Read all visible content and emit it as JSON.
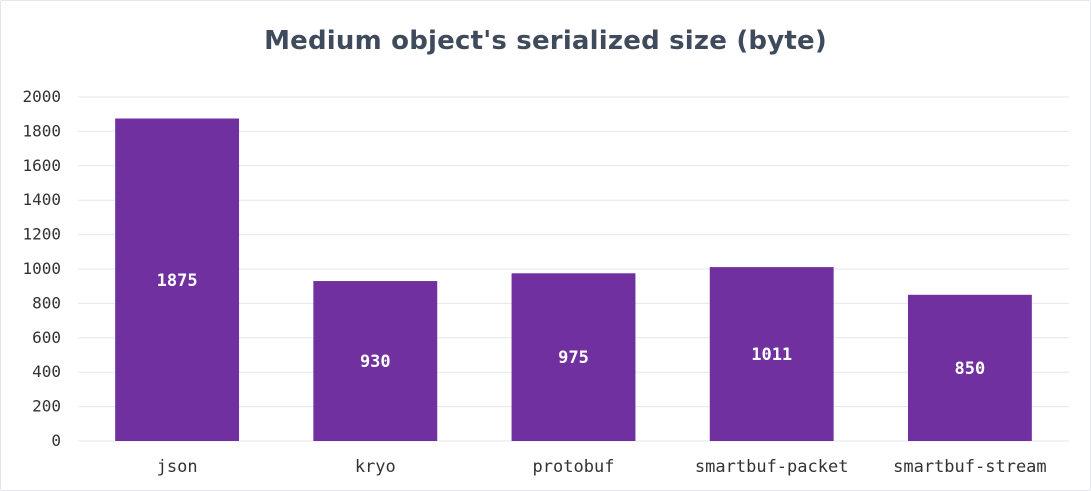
{
  "chart_data": {
    "type": "bar",
    "title": "Medium object's serialized size (byte)",
    "categories": [
      "json",
      "kryo",
      "protobuf",
      "smartbuf-packet",
      "smartbuf-stream"
    ],
    "values": [
      1875,
      930,
      975,
      1011,
      850
    ],
    "data_labels": [
      "1875",
      "930",
      "975",
      "1011",
      "850"
    ],
    "ylim": [
      0,
      2000
    ],
    "yticks": [
      0,
      200,
      400,
      600,
      800,
      1000,
      1200,
      1400,
      1600,
      1800,
      2000
    ],
    "xlabel": "",
    "ylabel": "",
    "grid": true,
    "bar_color": "#7030a0",
    "grid_color": "#e4e7ee"
  }
}
